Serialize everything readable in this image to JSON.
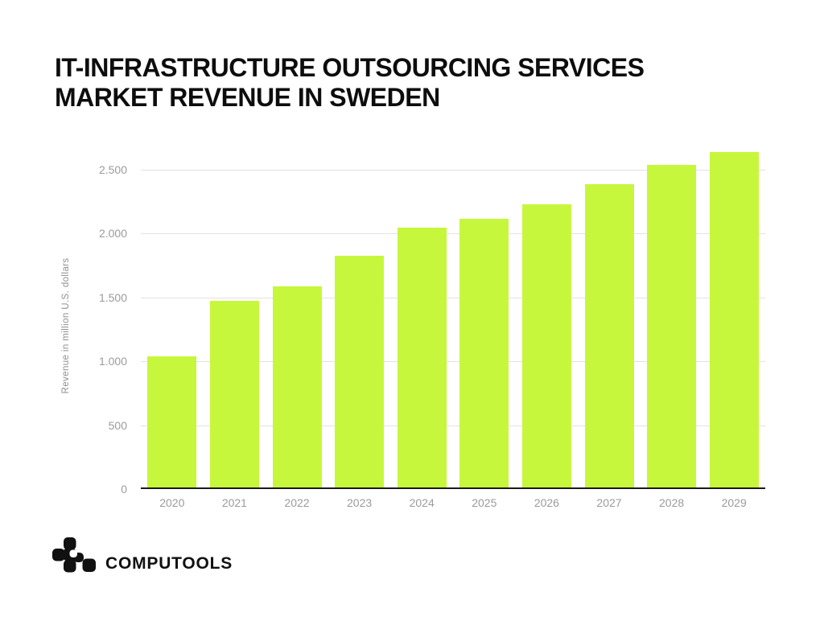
{
  "title_lines": [
    "IT-INFRASTRUCTURE OUTSOURCING SERVICES",
    "MARKET REVENUE IN SWEDEN"
  ],
  "chart_data": {
    "type": "bar",
    "title": "IT-infrastructure outsourcing services market revenue in Sweden",
    "categories": [
      "2020",
      "2021",
      "2022",
      "2023",
      "2024",
      "2025",
      "2026",
      "2027",
      "2028",
      "2029"
    ],
    "values": [
      1030,
      1470,
      1580,
      1820,
      2040,
      2110,
      2220,
      2380,
      2530,
      2630
    ],
    "xlabel": "",
    "ylabel": "Revenue in million U.S. dollars",
    "ylim": [
      0,
      2500
    ],
    "yticks": [
      0,
      500,
      1000,
      1500,
      2000,
      2500
    ],
    "ytick_labels": [
      "0",
      "500",
      "1.000",
      "1.500",
      "2.000",
      "2.500"
    ],
    "grid": true,
    "legend": false,
    "bar_color": "#c7f73c"
  },
  "logo": {
    "text": "COMPUTOOLS",
    "icon": "computools-blocks-mark"
  },
  "colors": {
    "background": "#ffffff",
    "bar": "#c7f73c",
    "gridline": "#e2e2e2",
    "axis_line": "#1a1a1a",
    "tick_text": "#9b9b9b",
    "title_text": "#0d0d0d",
    "ylabel_text": "#8f8f8f",
    "logo": "#111111"
  }
}
